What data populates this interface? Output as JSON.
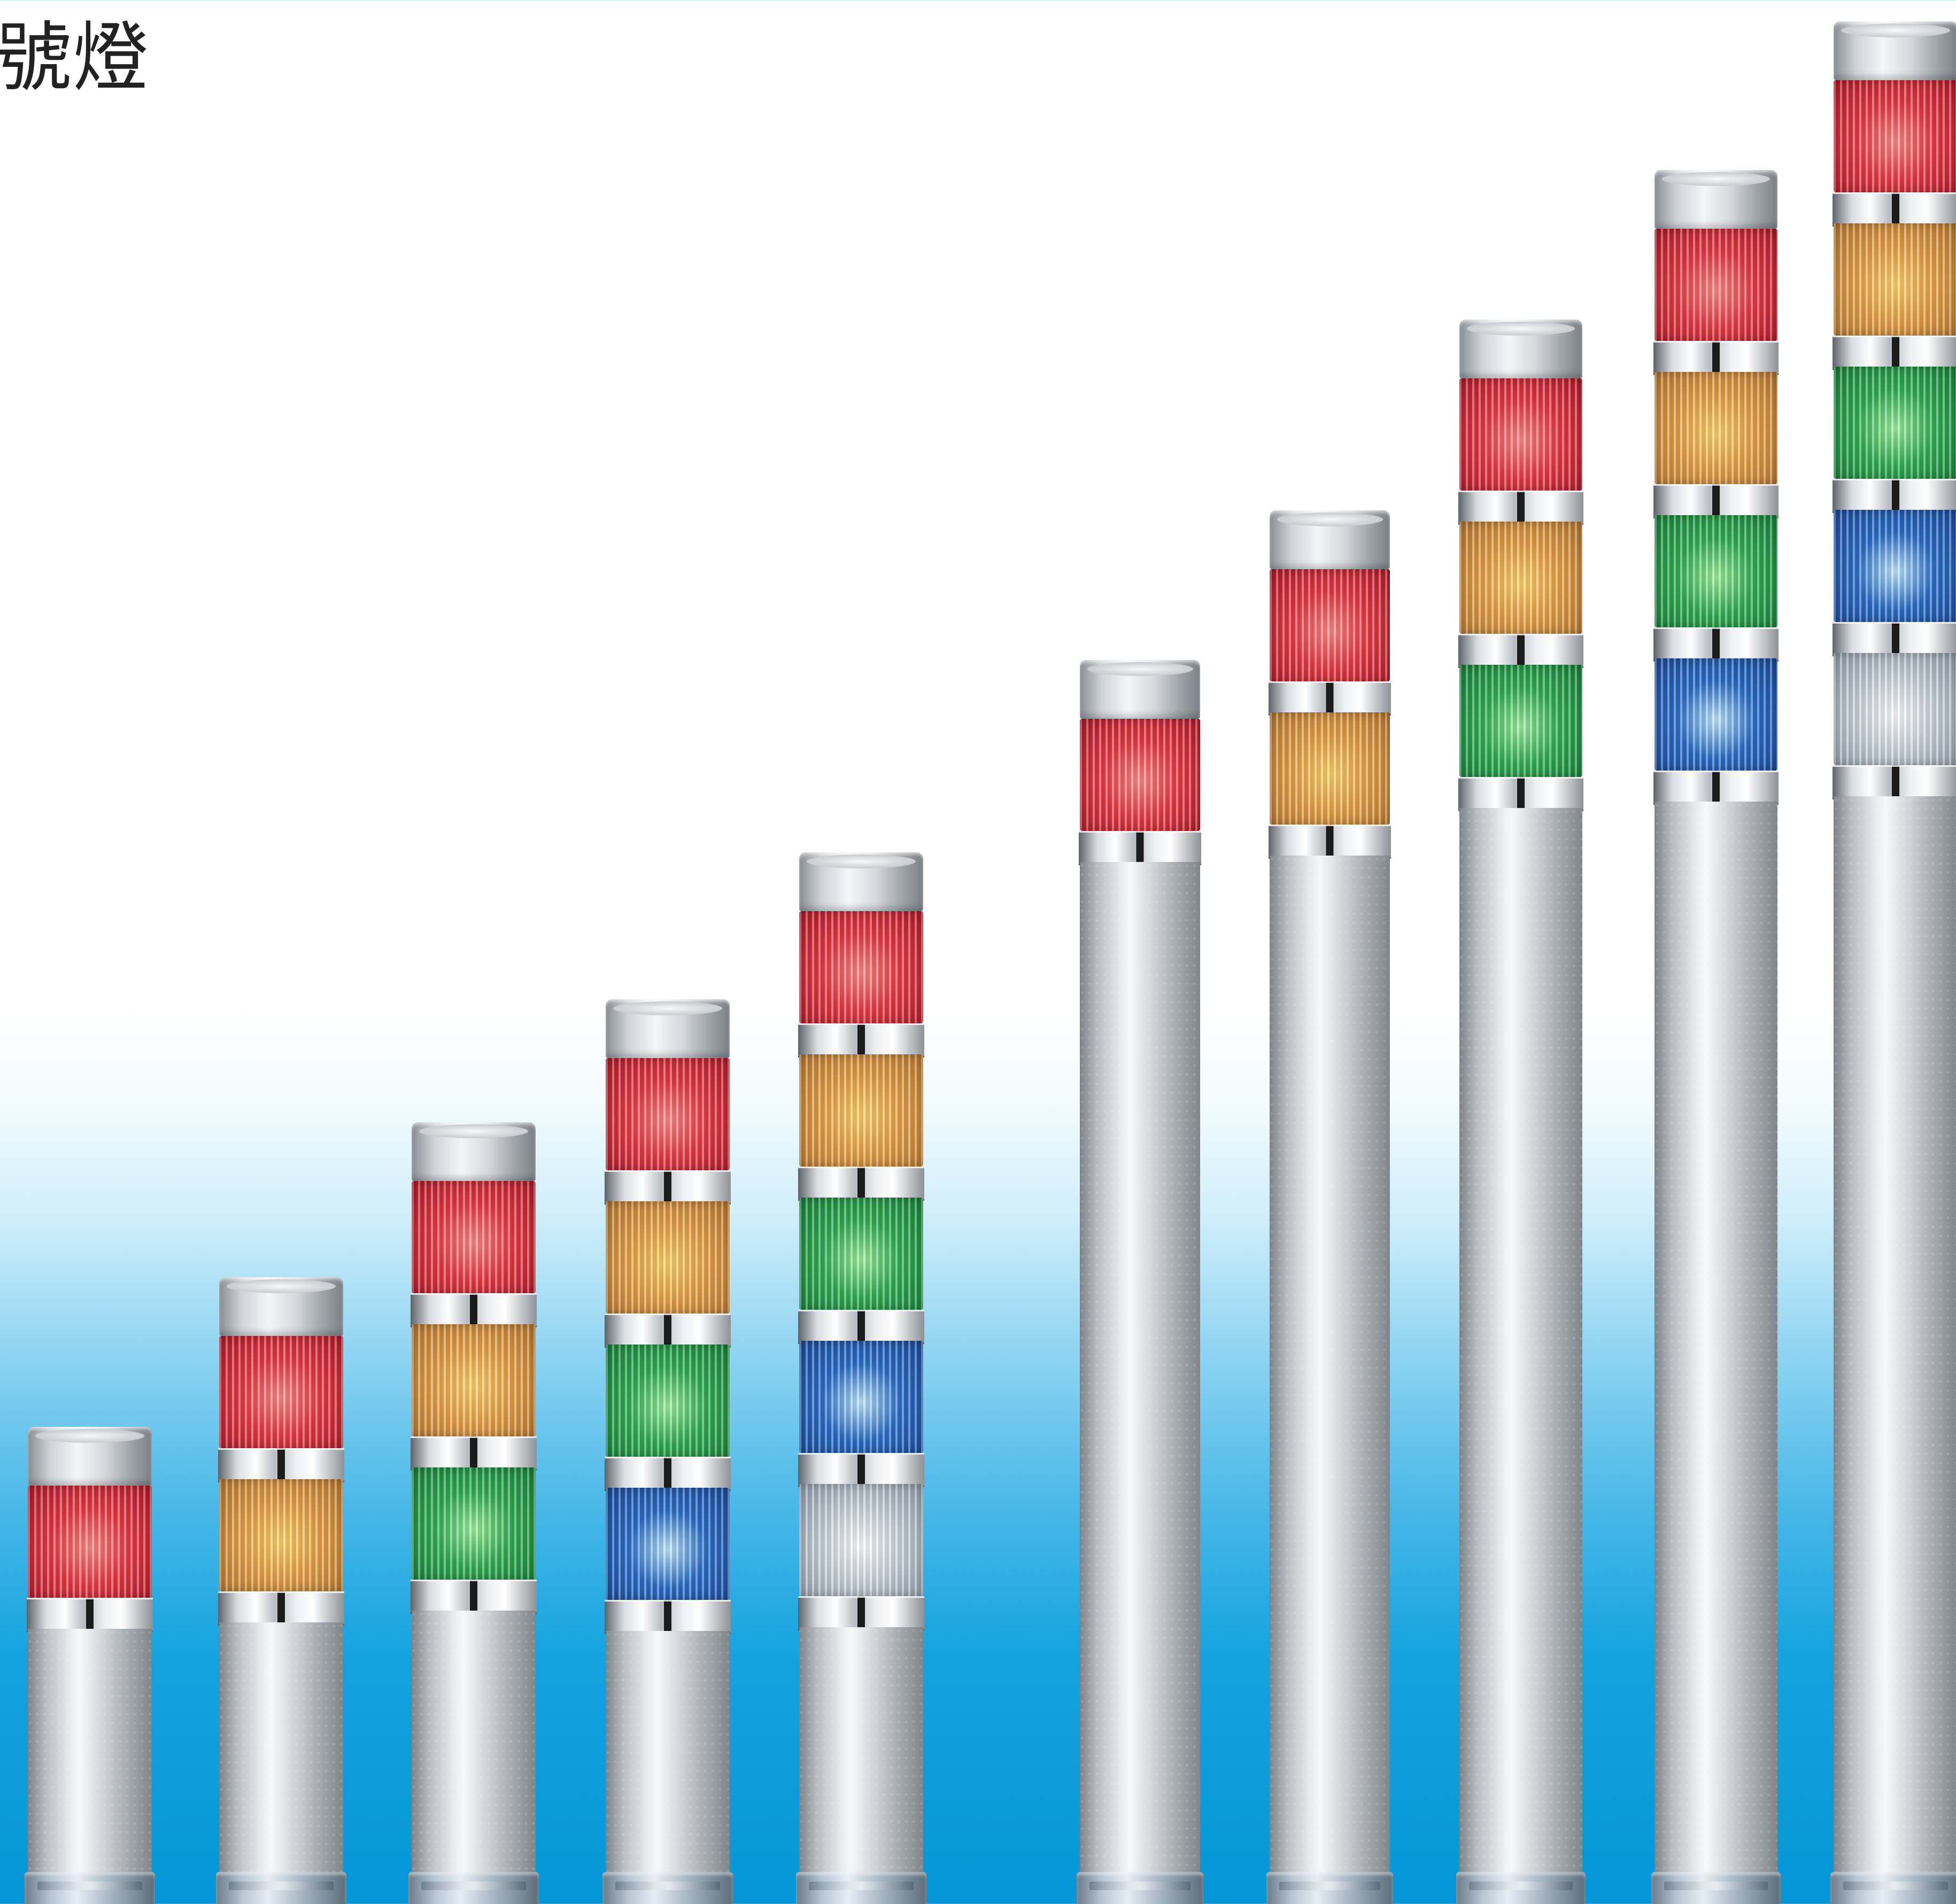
{
  "headline": {
    "text": "號燈"
  },
  "towers": [
    {
      "name": "tower-1-tier",
      "tiers": [
        "red"
      ]
    },
    {
      "name": "tower-2-tier",
      "tiers": [
        "red",
        "amber"
      ]
    },
    {
      "name": "tower-3-tier",
      "tiers": [
        "red",
        "amber",
        "green"
      ]
    },
    {
      "name": "tower-4-tier",
      "tiers": [
        "red",
        "amber",
        "green",
        "blue"
      ]
    },
    {
      "name": "tower-5-tier",
      "tiers": [
        "red",
        "amber",
        "green",
        "blue",
        "white"
      ]
    },
    {
      "name": "tower-1-tier-tall",
      "tiers": [
        "red"
      ]
    },
    {
      "name": "tower-2-tier-tall",
      "tiers": [
        "red",
        "amber"
      ]
    },
    {
      "name": "tower-3-tier-tall",
      "tiers": [
        "red",
        "amber",
        "green"
      ]
    },
    {
      "name": "tower-4-tier-tall",
      "tiers": [
        "red",
        "amber",
        "green",
        "blue"
      ]
    },
    {
      "name": "tower-5-tier-tall",
      "tiers": [
        "red",
        "amber",
        "green",
        "blue",
        "white"
      ]
    }
  ],
  "colors": {
    "red": "#e83a44",
    "amber": "#e6a146",
    "green": "#2fae52",
    "blue": "#2a6fc9",
    "white": "#e6eef4",
    "background_top": "#ffffff",
    "background_bottom": "#0596d7"
  }
}
